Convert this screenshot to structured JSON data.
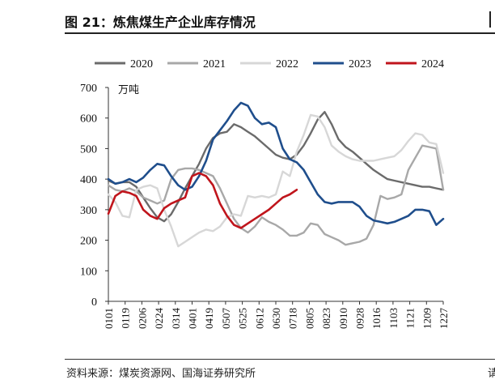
{
  "figure": {
    "title": "图 21：炼焦煤生产企业库存情况",
    "source": "资料来源：煤炭资源网、国海证券研究所",
    "edge_mark": "请"
  },
  "chart_data": {
    "type": "line",
    "title": "",
    "unit_label": "万吨",
    "ylim": [
      0,
      700
    ],
    "yticks": [
      0,
      100,
      200,
      300,
      400,
      500,
      600,
      700
    ],
    "x_tick_labels": [
      "0101",
      "0119",
      "0206",
      "0224",
      "0314",
      "0401",
      "0419",
      "0507",
      "0525",
      "0612",
      "0630",
      "0718",
      "0805",
      "0823",
      "0910",
      "0928",
      "1016",
      "1103",
      "1121",
      "1209",
      "1227"
    ],
    "legend_position": "top",
    "grid": false,
    "series": [
      {
        "name": "2020",
        "color": "#6b6b6b",
        "values": [
          395,
          385,
          390,
          390,
          375,
          340,
          305,
          275,
          262,
          285,
          325,
          370,
          410,
          450,
          500,
          535,
          550,
          555,
          580,
          570,
          555,
          540,
          520,
          500,
          480,
          470,
          465,
          480,
          510,
          550,
          595,
          620,
          580,
          530,
          505,
          490,
          470,
          450,
          430,
          415,
          400,
          395,
          390,
          385,
          380,
          375,
          375,
          370,
          365
        ]
      },
      {
        "name": "2021",
        "color": "#a8a8a8",
        "values": [
          380,
          365,
          360,
          370,
          360,
          340,
          330,
          320,
          330,
          400,
          430,
          435,
          435,
          430,
          420,
          410,
          370,
          320,
          270,
          240,
          225,
          245,
          275,
          260,
          250,
          235,
          215,
          215,
          225,
          255,
          250,
          220,
          210,
          200,
          185,
          190,
          195,
          205,
          250,
          345,
          335,
          340,
          350,
          430,
          470,
          510,
          505,
          500,
          365
        ]
      },
      {
        "name": "2022",
        "color": "#d7d7d7",
        "values": [
          350,
          325,
          280,
          275,
          365,
          375,
          380,
          370,
          300,
          245,
          180,
          195,
          210,
          225,
          235,
          230,
          245,
          275,
          285,
          280,
          345,
          340,
          345,
          340,
          350,
          425,
          410,
          490,
          545,
          610,
          605,
          570,
          510,
          490,
          475,
          465,
          460,
          460,
          460,
          465,
          470,
          475,
          495,
          525,
          550,
          545,
          520,
          515,
          420
        ]
      },
      {
        "name": "2023",
        "color": "#1f4e8c",
        "values": [
          400,
          385,
          390,
          400,
          390,
          405,
          430,
          450,
          445,
          410,
          380,
          365,
          375,
          410,
          460,
          530,
          560,
          590,
          625,
          650,
          640,
          600,
          580,
          585,
          570,
          500,
          465,
          455,
          430,
          390,
          350,
          325,
          320,
          325,
          325,
          325,
          310,
          280,
          265,
          260,
          255,
          260,
          270,
          280,
          300,
          300,
          295,
          250,
          270
        ]
      },
      {
        "name": "2024",
        "color": "#c0151c",
        "values": [
          287,
          345,
          360,
          355,
          345,
          300,
          280,
          270,
          305,
          320,
          330,
          340,
          410,
          420,
          410,
          380,
          320,
          280,
          250,
          240,
          255,
          270,
          285,
          300,
          320,
          340,
          350,
          365
        ]
      }
    ]
  }
}
